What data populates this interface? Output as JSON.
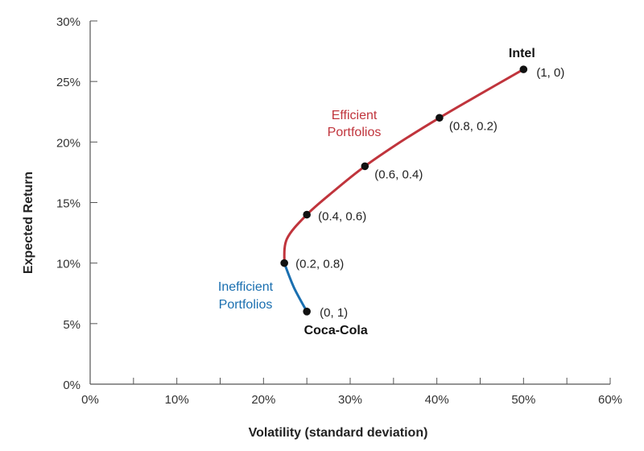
{
  "chart_data": {
    "type": "line",
    "xlabel": "Volatility (standard deviation)",
    "ylabel": "Expected Return",
    "xlim": [
      0,
      60
    ],
    "ylim": [
      0,
      30
    ],
    "x_ticks": [
      0,
      10,
      20,
      30,
      40,
      50,
      60
    ],
    "x_tick_labels": [
      "0%",
      "10%",
      "20%",
      "30%",
      "40%",
      "50%",
      "60%"
    ],
    "y_ticks": [
      0,
      5,
      10,
      15,
      20,
      25,
      30
    ],
    "y_tick_labels": [
      "0%",
      "5%",
      "10%",
      "15%",
      "20%",
      "25%",
      "30%"
    ],
    "grid": false,
    "colors": {
      "efficient": "#c0343c",
      "inefficient": "#1a6fb0",
      "points": "#111111",
      "axis": "#555555"
    },
    "series": [
      {
        "name": "Efficient Portfolios",
        "x": [
          22.4,
          22.7,
          25.0,
          28.2,
          31.7,
          35.8,
          40.3,
          45.1,
          50.0
        ],
        "y": [
          10.0,
          12.0,
          14.0,
          16.0,
          18.0,
          20.0,
          22.0,
          24.0,
          26.0
        ]
      },
      {
        "name": "Inefficient Portfolios",
        "x": [
          25.0,
          23.5,
          22.4
        ],
        "y": [
          6.0,
          8.0,
          10.0
        ]
      }
    ],
    "points": [
      {
        "label": "(0, 1)",
        "x": 25.0,
        "y": 6.0
      },
      {
        "label": "(0.2, 0.8)",
        "x": 22.4,
        "y": 10.0
      },
      {
        "label": "(0.4, 0.6)",
        "x": 25.0,
        "y": 14.0
      },
      {
        "label": "(0.6, 0.4)",
        "x": 31.7,
        "y": 18.0
      },
      {
        "label": "(0.8, 0.2)",
        "x": 40.3,
        "y": 22.0
      },
      {
        "label": "(1, 0)",
        "x": 50.0,
        "y": 26.0
      }
    ],
    "asset_labels": [
      "Coca-Cola",
      "Intel"
    ],
    "region_labels": {
      "efficient": [
        "Efficient",
        "Portfolios"
      ],
      "inefficient": [
        "Inefficient",
        "Portfolios"
      ]
    }
  }
}
